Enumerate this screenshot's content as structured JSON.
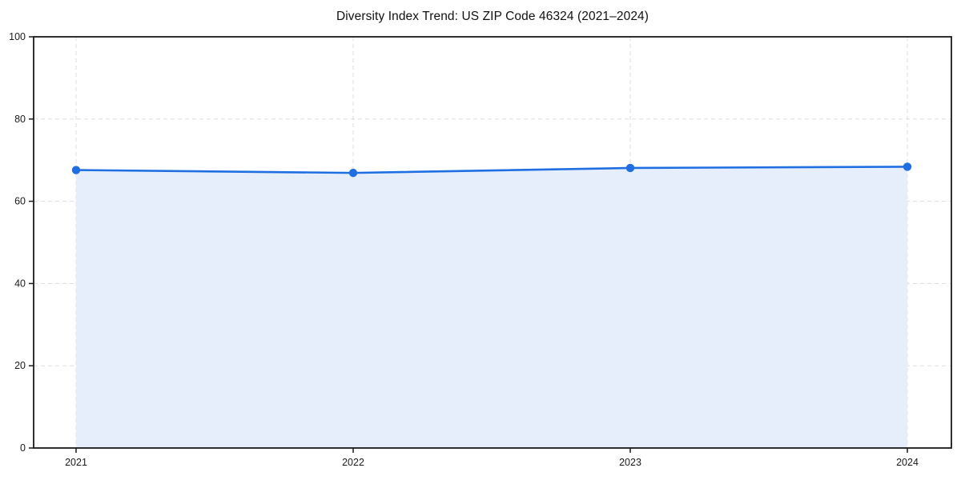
{
  "chart_data": {
    "type": "area",
    "title": "Diversity Index Trend: US ZIP Code 46324 (2021–2024)",
    "x": [
      "2021",
      "2022",
      "2023",
      "2024"
    ],
    "values": [
      67.6,
      66.9,
      68.1,
      68.4
    ],
    "xlabel": "",
    "ylabel": "",
    "ylim": [
      0,
      100
    ],
    "yticks": [
      0,
      20,
      40,
      60,
      80,
      100
    ],
    "grid": "dashed",
    "legend": "none",
    "colors": {
      "line": "#1f6fe2",
      "marker": "#1f6fe2",
      "fill": "#e7eefb",
      "grid": "#dddddd",
      "spine": "#1a1a1a",
      "tick_text": "#1a1a1a"
    }
  }
}
